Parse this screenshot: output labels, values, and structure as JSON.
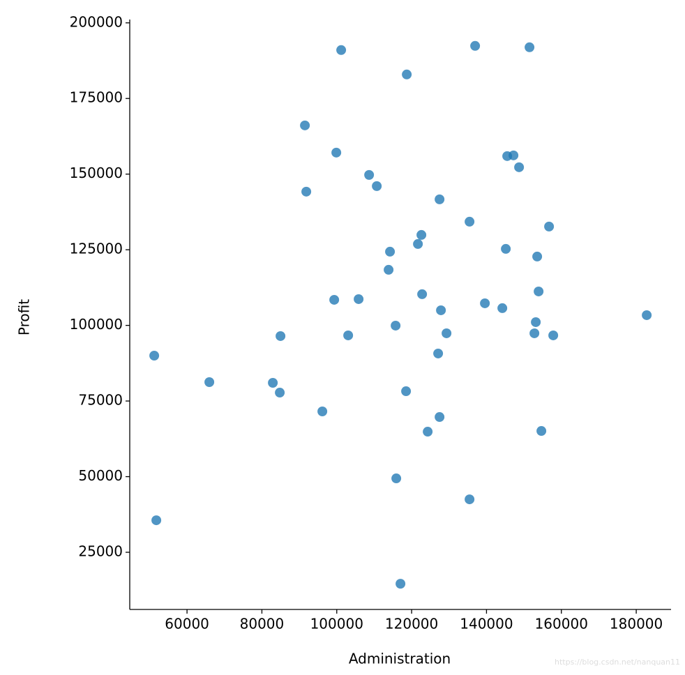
{
  "chart_data": {
    "type": "scatter",
    "x_label": "Administration",
    "y_label": "Profit",
    "watermark": "https://blog.csdn.net/nanquan11",
    "color": "#1f77b4",
    "xlim": [
      44700,
      189300
    ],
    "ylim": [
      6100,
      201100
    ],
    "xticks": [
      60000,
      80000,
      100000,
      120000,
      140000,
      160000,
      180000
    ],
    "yticks": [
      25000,
      50000,
      75000,
      100000,
      125000,
      150000,
      175000,
      200000
    ],
    "x": [
      101180,
      136960,
      151490,
      118700,
      91490,
      99880,
      145530,
      147210,
      148700,
      108640,
      110690,
      91860,
      127460,
      135470,
      156710,
      122610,
      121680,
      114220,
      145160,
      153540,
      113850,
      153920,
      122800,
      99320,
      105840,
      139570,
      144230,
      127830,
      182800,
      153170,
      115720,
      129320,
      152800,
      84970,
      103050,
      157830,
      127080,
      51240,
      65960,
      82920,
      84780,
      118510,
      96150,
      127460,
      124290,
      154660,
      115900,
      135470,
      51800,
      117020
    ],
    "values": [
      191010,
      192390,
      191930,
      182940,
      166100,
      157110,
      155960,
      156190,
      152270,
      149730,
      146040,
      144200,
      141660,
      134280,
      132670,
      129900,
      126900,
      124360,
      125290,
      122750,
      118370,
      111220,
      110300,
      108450,
      108680,
      107300,
      105690,
      104990,
      103380,
      101070,
      99920,
      97380,
      97380,
      96460,
      96690,
      96690,
      90700,
      90000,
      81240,
      81010,
      77780,
      78240,
      71560,
      69710,
      64870,
      65100,
      49420,
      42500,
      35580,
      14600
    ]
  }
}
